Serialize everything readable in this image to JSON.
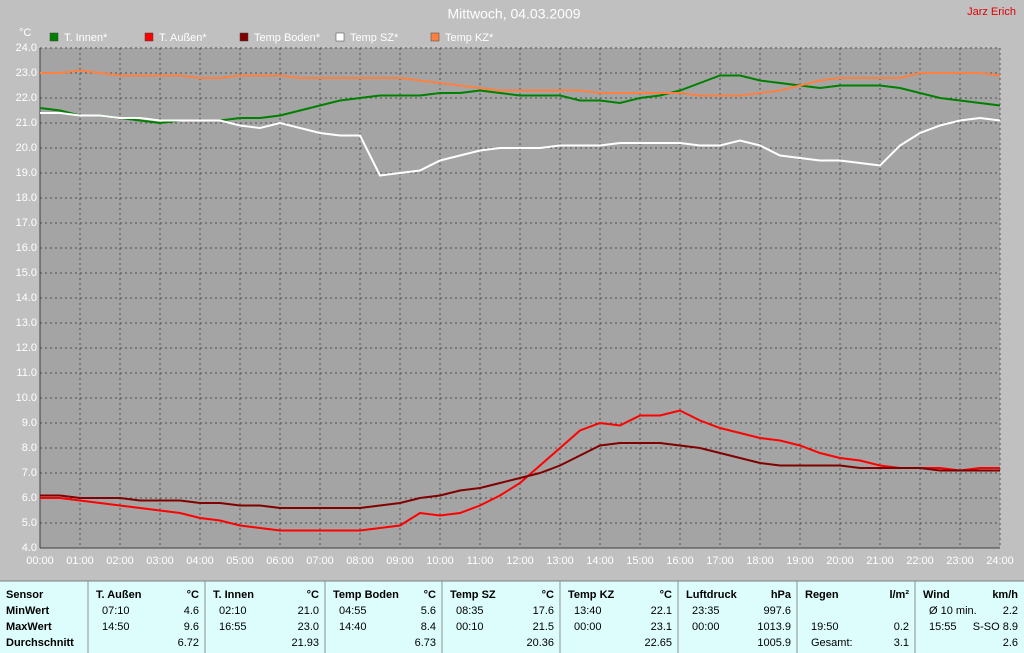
{
  "chart_data": {
    "type": "line",
    "title": "Mittwoch, 04.03.2009",
    "author": "Jarz Erich",
    "ylabel": "°C",
    "grid": true,
    "xlim": [
      0,
      24
    ],
    "ylim": [
      4,
      24
    ],
    "xticks": [
      {
        "value": 0,
        "label": "00:00"
      },
      {
        "value": 1,
        "label": "01:00"
      },
      {
        "value": 2,
        "label": "02:00"
      },
      {
        "value": 3,
        "label": "03:00"
      },
      {
        "value": 4,
        "label": "04:00"
      },
      {
        "value": 5,
        "label": "05:00"
      },
      {
        "value": 6,
        "label": "06:00"
      },
      {
        "value": 7,
        "label": "07:00"
      },
      {
        "value": 8,
        "label": "08:00"
      },
      {
        "value": 9,
        "label": "09:00"
      },
      {
        "value": 10,
        "label": "10:00"
      },
      {
        "value": 11,
        "label": "11:00"
      },
      {
        "value": 12,
        "label": "12:00"
      },
      {
        "value": 13,
        "label": "13:00"
      },
      {
        "value": 14,
        "label": "14:00"
      },
      {
        "value": 15,
        "label": "15:00"
      },
      {
        "value": 16,
        "label": "16:00"
      },
      {
        "value": 17,
        "label": "17:00"
      },
      {
        "value": 18,
        "label": "18:00"
      },
      {
        "value": 19,
        "label": "19:00"
      },
      {
        "value": 20,
        "label": "20:00"
      },
      {
        "value": 21,
        "label": "21:00"
      },
      {
        "value": 22,
        "label": "22:00"
      },
      {
        "value": 23,
        "label": "23:00"
      },
      {
        "value": 24,
        "label": "24:00"
      }
    ],
    "yticks": [
      {
        "value": 4,
        "label": "4.0"
      },
      {
        "value": 5,
        "label": "5.0"
      },
      {
        "value": 6,
        "label": "6.0"
      },
      {
        "value": 7,
        "label": "7.0"
      },
      {
        "value": 8,
        "label": "8.0"
      },
      {
        "value": 9,
        "label": "9.0"
      },
      {
        "value": 10,
        "label": "10.0"
      },
      {
        "value": 11,
        "label": "11.0"
      },
      {
        "value": 12,
        "label": "12.0"
      },
      {
        "value": 13,
        "label": "13.0"
      },
      {
        "value": 14,
        "label": "14.0"
      },
      {
        "value": 15,
        "label": "15.0"
      },
      {
        "value": 16,
        "label": "16.0"
      },
      {
        "value": 17,
        "label": "17.0"
      },
      {
        "value": 18,
        "label": "18.0"
      },
      {
        "value": 19,
        "label": "19.0"
      },
      {
        "value": 20,
        "label": "20.0"
      },
      {
        "value": 21,
        "label": "21.0"
      },
      {
        "value": 22,
        "label": "22.0"
      },
      {
        "value": 23,
        "label": "23.0"
      },
      {
        "value": 24,
        "label": "24.0"
      }
    ],
    "x": [
      0,
      0.5,
      1,
      1.5,
      2,
      2.5,
      3,
      3.5,
      4,
      4.5,
      5,
      5.5,
      6,
      6.5,
      7,
      7.5,
      8,
      8.5,
      9,
      9.5,
      10,
      10.5,
      11,
      11.5,
      12,
      12.5,
      13,
      13.5,
      14,
      14.5,
      15,
      15.5,
      16,
      16.5,
      17,
      17.5,
      18,
      18.5,
      19,
      19.5,
      20,
      20.5,
      21,
      21.5,
      22,
      22.5,
      23,
      23.5,
      24
    ],
    "series": [
      {
        "name": "T. Innen*",
        "color": "#008000",
        "values": [
          21.6,
          21.5,
          21.3,
          21.3,
          21.2,
          21.1,
          21.0,
          21.1,
          21.1,
          21.1,
          21.2,
          21.2,
          21.3,
          21.5,
          21.7,
          21.9,
          22.0,
          22.1,
          22.1,
          22.1,
          22.2,
          22.2,
          22.3,
          22.2,
          22.1,
          22.1,
          22.1,
          21.9,
          21.9,
          21.8,
          22.0,
          22.1,
          22.3,
          22.6,
          22.9,
          22.9,
          22.7,
          22.6,
          22.5,
          22.4,
          22.5,
          22.5,
          22.5,
          22.4,
          22.2,
          22.0,
          21.9,
          21.8,
          21.7
        ]
      },
      {
        "name": "T. Außen*",
        "color": "#ff0000",
        "values": [
          6.0,
          6.0,
          5.9,
          5.8,
          5.7,
          5.6,
          5.5,
          5.4,
          5.2,
          5.1,
          4.9,
          4.8,
          4.7,
          4.7,
          4.7,
          4.7,
          4.7,
          4.8,
          4.9,
          5.4,
          5.3,
          5.4,
          5.7,
          6.1,
          6.6,
          7.3,
          8.0,
          8.7,
          9.0,
          8.9,
          9.3,
          9.3,
          9.5,
          9.1,
          8.8,
          8.6,
          8.4,
          8.3,
          8.1,
          7.8,
          7.6,
          7.5,
          7.3,
          7.2,
          7.2,
          7.2,
          7.1,
          7.2,
          7.2
        ]
      },
      {
        "name": "Temp Boden*",
        "color": "#800000",
        "values": [
          6.1,
          6.1,
          6.0,
          6.0,
          6.0,
          5.9,
          5.9,
          5.9,
          5.8,
          5.8,
          5.7,
          5.7,
          5.6,
          5.6,
          5.6,
          5.6,
          5.6,
          5.7,
          5.8,
          6.0,
          6.1,
          6.3,
          6.4,
          6.6,
          6.8,
          7.0,
          7.3,
          7.7,
          8.1,
          8.2,
          8.2,
          8.2,
          8.1,
          8.0,
          7.8,
          7.6,
          7.4,
          7.3,
          7.3,
          7.3,
          7.3,
          7.2,
          7.2,
          7.2,
          7.2,
          7.1,
          7.1,
          7.1,
          7.1
        ]
      },
      {
        "name": "Temp SZ*",
        "color": "#ffffff",
        "values": [
          21.4,
          21.4,
          21.3,
          21.3,
          21.2,
          21.2,
          21.1,
          21.1,
          21.1,
          21.1,
          20.9,
          20.8,
          21.0,
          20.8,
          20.6,
          20.5,
          20.5,
          18.9,
          19.0,
          19.1,
          19.5,
          19.7,
          19.9,
          20.0,
          20.0,
          20.0,
          20.1,
          20.1,
          20.1,
          20.2,
          20.2,
          20.2,
          20.2,
          20.1,
          20.1,
          20.3,
          20.1,
          19.7,
          19.6,
          19.5,
          19.5,
          19.4,
          19.3,
          20.1,
          20.6,
          20.9,
          21.1,
          21.2,
          21.1
        ]
      },
      {
        "name": "Temp KZ*",
        "color": "#ff8040",
        "values": [
          23.0,
          23.0,
          23.1,
          23.0,
          22.9,
          22.9,
          22.9,
          22.9,
          22.8,
          22.8,
          22.9,
          22.9,
          22.9,
          22.8,
          22.8,
          22.8,
          22.8,
          22.8,
          22.8,
          22.7,
          22.6,
          22.5,
          22.4,
          22.3,
          22.3,
          22.3,
          22.3,
          22.3,
          22.2,
          22.2,
          22.2,
          22.2,
          22.2,
          22.1,
          22.1,
          22.1,
          22.2,
          22.3,
          22.5,
          22.7,
          22.8,
          22.8,
          22.8,
          22.8,
          23.0,
          23.0,
          23.0,
          23.0,
          22.9
        ]
      }
    ]
  },
  "table": {
    "row_labels": [
      "Sensor",
      "MinWert",
      "MaxWert",
      "Durchschnitt"
    ],
    "columns": [
      {
        "name": "T. Außen",
        "unit": "°C",
        "rows": [
          [
            "07:10",
            "4.6"
          ],
          [
            "14:50",
            "9.6"
          ],
          [
            null,
            "6.72"
          ]
        ]
      },
      {
        "name": "T. Innen",
        "unit": "°C",
        "rows": [
          [
            "02:10",
            "21.0"
          ],
          [
            "16:55",
            "23.0"
          ],
          [
            null,
            "21.93"
          ]
        ]
      },
      {
        "name": "Temp Boden",
        "unit": "°C",
        "rows": [
          [
            "04:55",
            "5.6"
          ],
          [
            "14:40",
            "8.4"
          ],
          [
            null,
            "6.73"
          ]
        ]
      },
      {
        "name": "Temp SZ",
        "unit": "°C",
        "rows": [
          [
            "08:35",
            "17.6"
          ],
          [
            "00:10",
            "21.5"
          ],
          [
            null,
            "20.36"
          ]
        ]
      },
      {
        "name": "Temp KZ",
        "unit": "°C",
        "rows": [
          [
            "13:40",
            "22.1"
          ],
          [
            "00:00",
            "23.1"
          ],
          [
            null,
            "22.65"
          ]
        ]
      },
      {
        "name": "Luftdruck",
        "unit": "hPa",
        "rows": [
          [
            "23:35",
            "997.6"
          ],
          [
            "00:00",
            "1013.9"
          ],
          [
            null,
            "1005.9"
          ]
        ]
      },
      {
        "name": "Regen",
        "unit": "l/m²",
        "rows": [
          [
            null,
            null
          ],
          [
            "19:50",
            "0.2"
          ],
          [
            "Gesamt:",
            "3.1"
          ]
        ]
      },
      {
        "name": "Wind",
        "unit": "km/h",
        "rows": [
          [
            "Ø 10 min.",
            "2.2"
          ],
          [
            "15:55",
            "S-SO 8.9"
          ],
          [
            null,
            "2.6"
          ]
        ]
      }
    ]
  }
}
